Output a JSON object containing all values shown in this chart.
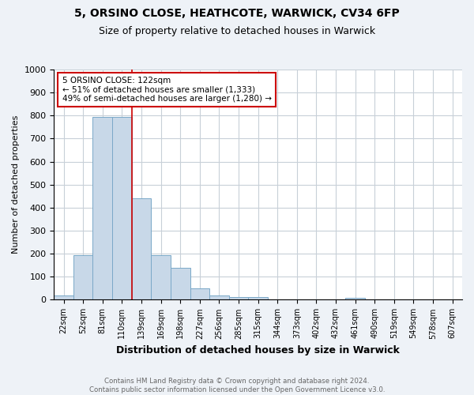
{
  "title1": "5, ORSINO CLOSE, HEATHCOTE, WARWICK, CV34 6FP",
  "title2": "Size of property relative to detached houses in Warwick",
  "xlabel": "Distribution of detached houses by size in Warwick",
  "ylabel": "Number of detached properties",
  "footnote": "Contains HM Land Registry data © Crown copyright and database right 2024.\nContains public sector information licensed under the Open Government Licence v3.0.",
  "bins": [
    "22sqm",
    "52sqm",
    "81sqm",
    "110sqm",
    "139sqm",
    "169sqm",
    "198sqm",
    "227sqm",
    "256sqm",
    "285sqm",
    "315sqm",
    "344sqm",
    "373sqm",
    "402sqm",
    "432sqm",
    "461sqm",
    "490sqm",
    "519sqm",
    "549sqm",
    "578sqm",
    "607sqm"
  ],
  "values": [
    17,
    193,
    793,
    793,
    440,
    193,
    140,
    48,
    17,
    13,
    13,
    0,
    0,
    0,
    0,
    10,
    0,
    0,
    0,
    0,
    0
  ],
  "bar_color": "#c8d8e8",
  "bar_edge_color": "#7aA8c8",
  "vline_color": "#cc0000",
  "annotation_text": "5 ORSINO CLOSE: 122sqm\n← 51% of detached houses are smaller (1,333)\n49% of semi-detached houses are larger (1,280) →",
  "annotation_box_color": "white",
  "annotation_box_edge": "#cc0000",
  "ylim": [
    0,
    1000
  ],
  "yticks": [
    0,
    100,
    200,
    300,
    400,
    500,
    600,
    700,
    800,
    900,
    1000
  ],
  "background_color": "#eef2f7",
  "plot_bg_color": "white",
  "grid_color": "#c8d0d8"
}
